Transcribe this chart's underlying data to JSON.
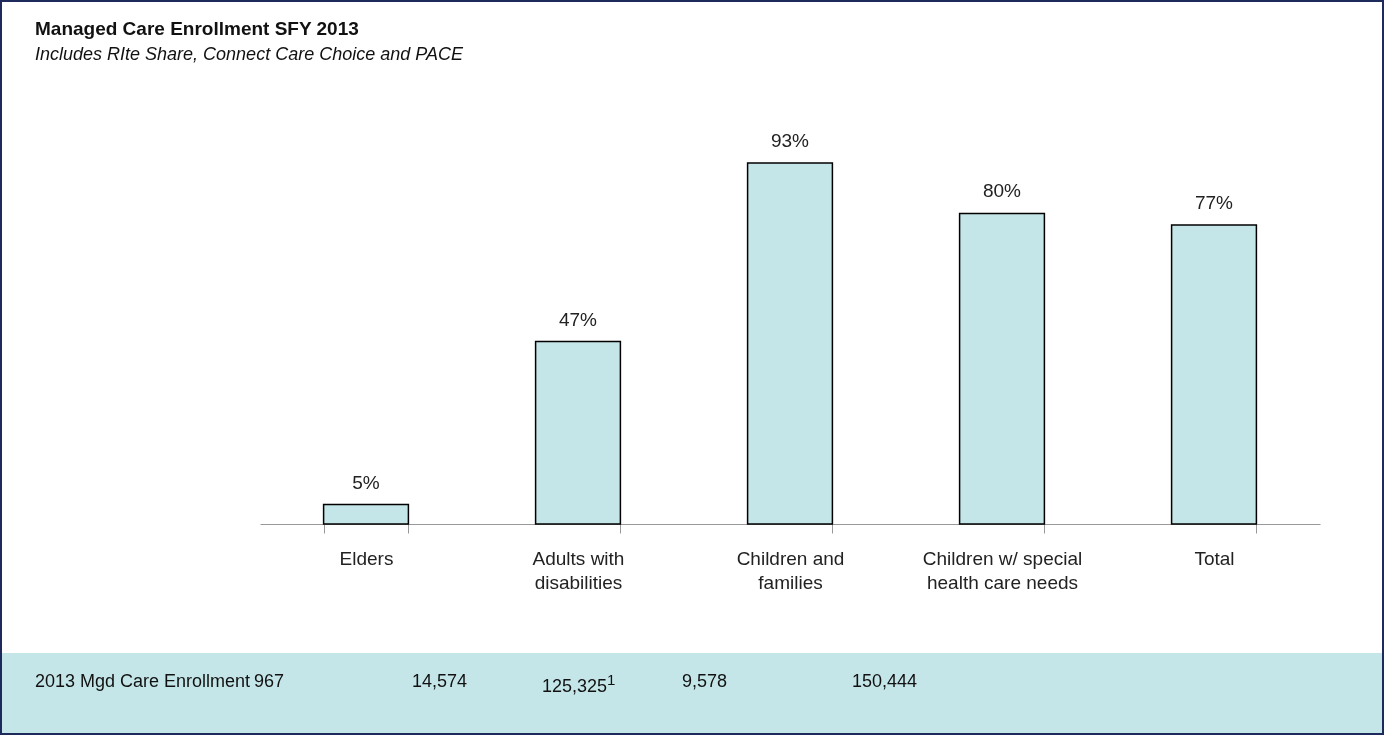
{
  "chart_data": {
    "type": "bar",
    "title": "Managed Care Enrollment SFY 2013",
    "subtitle": "Includes RIte Share, Connect Care Choice and PACE",
    "categories": [
      "Elders",
      "Adults with disabilities",
      "Children and families",
      "Children w/ special health care needs",
      "Total"
    ],
    "values": [
      5,
      47,
      93,
      80,
      77
    ],
    "value_labels": [
      "5%",
      "47%",
      "93%",
      "80%",
      "77%"
    ],
    "color": "#c5e6e8",
    "annotations": [
      "2013 Mgd Care Enrollment",
      "967",
      "14,574",
      "125,325$^{1}$",
      "9,578",
      "150,444"
    ]
  }
}
